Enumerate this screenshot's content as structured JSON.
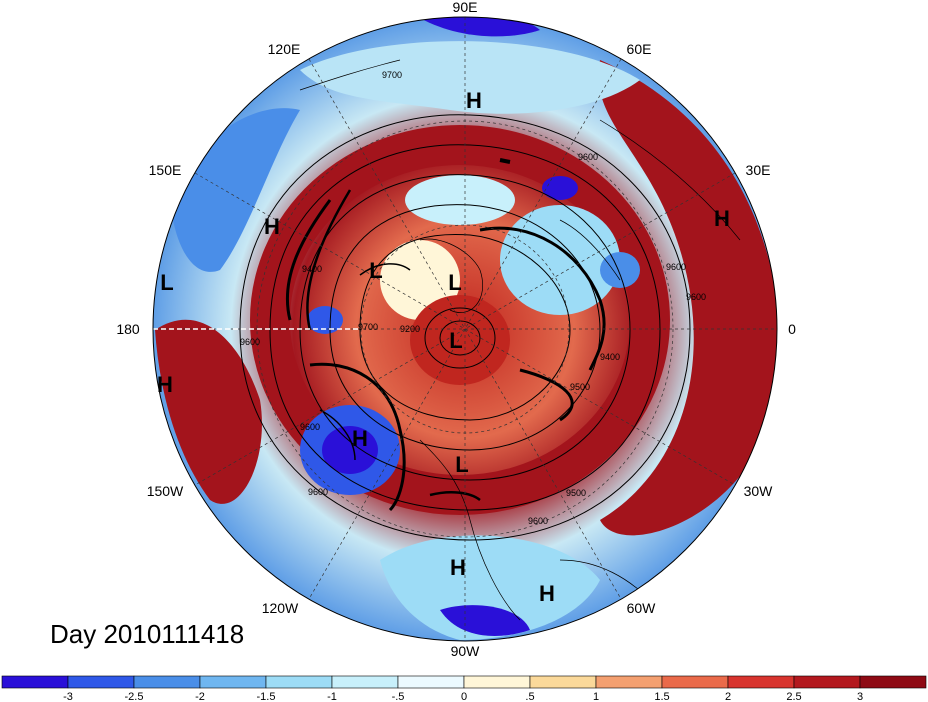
{
  "title": "Day 2010111418",
  "longitude_labels": {
    "top": "90E",
    "upper_left": "120E",
    "upper_right": "60E",
    "left_upper": "150E",
    "right_upper": "30E",
    "left": "180",
    "right": "0",
    "left_lower": "150W",
    "right_lower": "30W",
    "lower_left": "120W",
    "lower_right": "60W",
    "bottom": "90W"
  },
  "pressure_systems": [
    {
      "type": "H",
      "label": "H"
    },
    {
      "type": "H",
      "label": "H"
    },
    {
      "type": "H",
      "label": "H"
    },
    {
      "type": "L",
      "label": "L"
    },
    {
      "type": "H",
      "label": "H"
    },
    {
      "type": "L",
      "label": "L"
    },
    {
      "type": "L",
      "label": "L"
    },
    {
      "type": "L",
      "label": "L"
    },
    {
      "type": "H",
      "label": "H"
    },
    {
      "type": "L",
      "label": "L"
    },
    {
      "type": "H",
      "label": "H"
    },
    {
      "type": "H",
      "label": "H"
    }
  ],
  "contour_labels": [
    "9700",
    "9600",
    "9400",
    "9600",
    "9200",
    "9600",
    "9500",
    "9600",
    "9400",
    "9500",
    "9600",
    "9600",
    "9700",
    "9600"
  ],
  "colorbar": {
    "ticks": [
      "-3",
      "-2.5",
      "-2",
      "-1.5",
      "-1",
      "-.5",
      "0",
      ".5",
      "1",
      "1.5",
      "2",
      "2.5",
      "3"
    ],
    "colors": [
      "#2a10d8",
      "#2f58e8",
      "#4a8ee8",
      "#6fb6f0",
      "#9ddcf6",
      "#c8f0fb",
      "#ecfaff",
      "#fff6d8",
      "#fbd99a",
      "#f4a070",
      "#ea6a4a",
      "#d8342e",
      "#b3181e",
      "#8e0a14"
    ]
  }
}
